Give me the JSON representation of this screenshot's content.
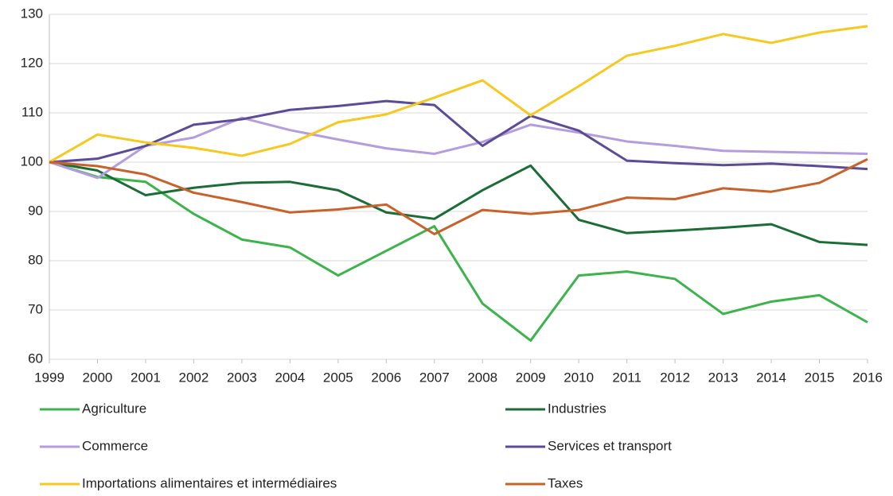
{
  "chart_data": {
    "type": "line",
    "x": [
      1999,
      2000,
      2001,
      2002,
      2003,
      2004,
      2005,
      2006,
      2007,
      2008,
      2009,
      2010,
      2011,
      2012,
      2013,
      2014,
      2015,
      2016
    ],
    "xlim": [
      1999,
      2016
    ],
    "xticks": [
      1999,
      2000,
      2001,
      2002,
      2003,
      2004,
      2005,
      2006,
      2007,
      2008,
      2009,
      2010,
      2011,
      2012,
      2013,
      2014,
      2015,
      2016
    ],
    "ylim": [
      60,
      130
    ],
    "yticks": [
      60,
      70,
      80,
      90,
      100,
      110,
      120,
      130
    ],
    "grid": true,
    "legend": "bottom",
    "series": [
      {
        "name": "Agriculture",
        "color": "#3cb44b",
        "values": [
          100,
          97,
          96,
          89.5,
          84.3,
          82.7,
          77,
          82,
          87,
          71.3,
          63.8,
          77,
          77.8,
          76.3,
          69.2,
          71.7,
          73,
          67.5
        ]
      },
      {
        "name": "Industries",
        "color": "#1b6d36",
        "values": [
          100,
          98.3,
          93.3,
          94.8,
          95.8,
          96,
          94.3,
          89.8,
          88.5,
          94.3,
          99.3,
          88.3,
          85.6,
          86.1,
          86.7,
          87.4,
          83.8,
          83.2
        ]
      },
      {
        "name": "Commerce",
        "color": "#b39ddf",
        "values": [
          100,
          96.8,
          103.3,
          105,
          109,
          106.5,
          104.6,
          102.8,
          101.7,
          104.1,
          107.6,
          106,
          104.2,
          103.3,
          102.3,
          102.1,
          101.9,
          101.7
        ]
      },
      {
        "name": "Services et transport",
        "color": "#5c4b97",
        "values": [
          100,
          100.7,
          103.3,
          107.6,
          108.7,
          110.6,
          111.4,
          112.4,
          111.6,
          103.3,
          109.4,
          106.4,
          100.3,
          99.8,
          99.4,
          99.7,
          99.2,
          98.6
        ]
      },
      {
        "name": "Importations alimentaires et intermédiaires",
        "color": "#f7c81e",
        "values": [
          100,
          105.6,
          104,
          102.9,
          101.3,
          103.7,
          108.1,
          109.7,
          113.1,
          116.6,
          109.5,
          115.4,
          121.6,
          123.6,
          126,
          124.2,
          126.3,
          127.6
        ]
      },
      {
        "name": "Taxes",
        "color": "#c9612b",
        "values": [
          100,
          99.2,
          97.5,
          93.8,
          91.9,
          89.8,
          90.4,
          91.4,
          85.4,
          90.3,
          89.5,
          90.3,
          92.8,
          92.5,
          94.7,
          94,
          95.8,
          100.6
        ]
      }
    ]
  }
}
